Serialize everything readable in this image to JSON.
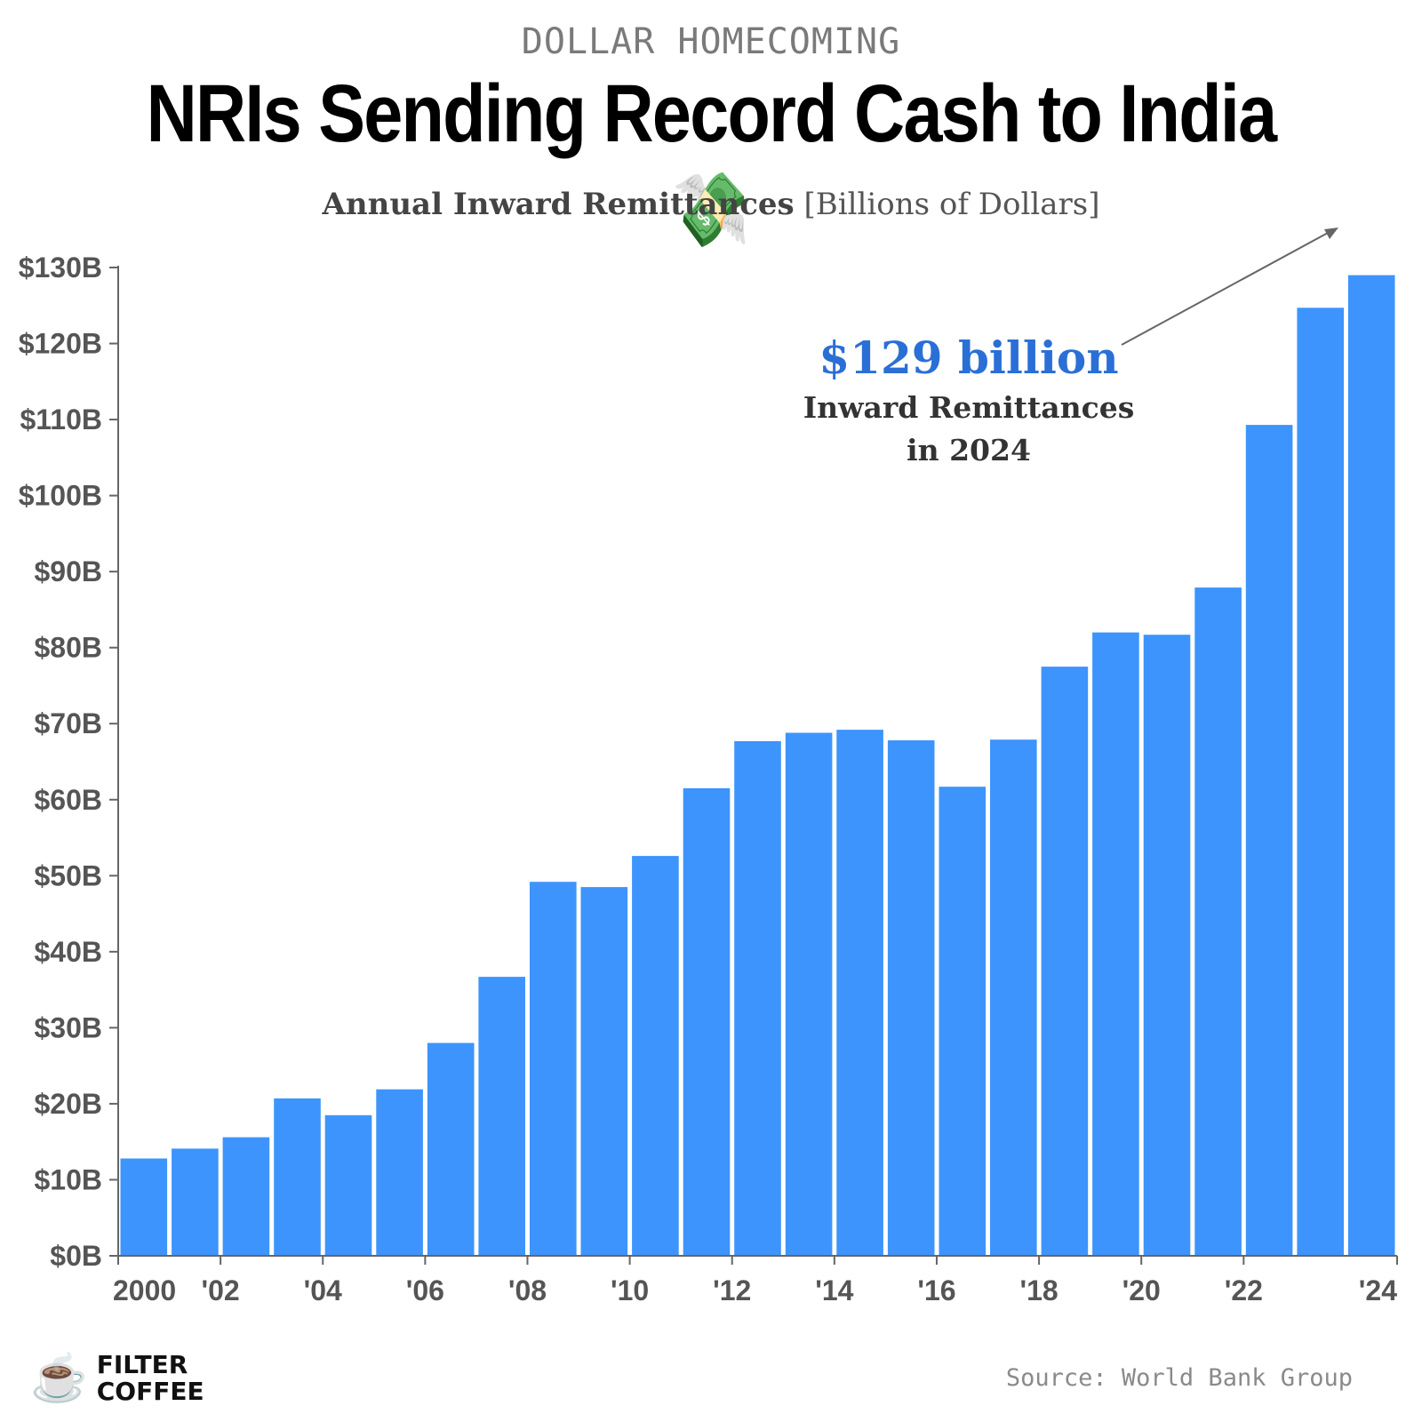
{
  "header": {
    "kicker": "DOLLAR HOMECOMING",
    "title": "NRIs Sending Record Cash to India",
    "title_emoji": "💸",
    "subtitle_bold": "Annual Inward Remittances",
    "subtitle_light": "[Billions of Dollars]"
  },
  "annotation": {
    "value": "$129 billion",
    "line1": "Inward Remittances",
    "line2": "in 2024"
  },
  "footer": {
    "logo_icon": "coffee-cup-icon",
    "logo_line1": "FILTER",
    "logo_line2": "COFFEE",
    "source": "Source: World Bank Group"
  },
  "chart_data": {
    "type": "bar",
    "title": "NRIs Sending Record Cash to India",
    "subtitle": "Annual Inward Remittances [Billions of Dollars]",
    "categories": [
      "2000",
      "2001",
      "2002",
      "2003",
      "2004",
      "2005",
      "2006",
      "2007",
      "2008",
      "2009",
      "2010",
      "2011",
      "2012",
      "2013",
      "2014",
      "2015",
      "2016",
      "2017",
      "2018",
      "2019",
      "2020",
      "2021",
      "2022",
      "2023",
      "2024"
    ],
    "values": [
      12.8,
      14.1,
      15.6,
      20.7,
      18.5,
      21.9,
      28.0,
      36.7,
      49.2,
      48.5,
      52.6,
      61.5,
      67.7,
      68.8,
      69.2,
      67.8,
      61.7,
      67.9,
      77.5,
      82.0,
      81.7,
      87.9,
      109.3,
      124.7,
      129.0
    ],
    "ylim": [
      0,
      130
    ],
    "yticks": [
      0,
      10,
      20,
      30,
      40,
      50,
      60,
      70,
      80,
      90,
      100,
      110,
      120,
      130
    ],
    "ytick_labels": [
      "$0B",
      "$10B",
      "$20B",
      "$30B",
      "$40B",
      "$50B",
      "$60B",
      "$70B",
      "$80B",
      "$90B",
      "$100B",
      "$110B",
      "$120B",
      "$130B"
    ],
    "xtick_labels": [
      "2000",
      "'02",
      "'04",
      "'06",
      "'08",
      "'10",
      "'12",
      "'14",
      "'16",
      "'18",
      "'20",
      "'22",
      "'24"
    ],
    "bar_color": "#3d94fc",
    "annotation_color": "#2a6fd6",
    "grid": false,
    "legend": "none"
  }
}
